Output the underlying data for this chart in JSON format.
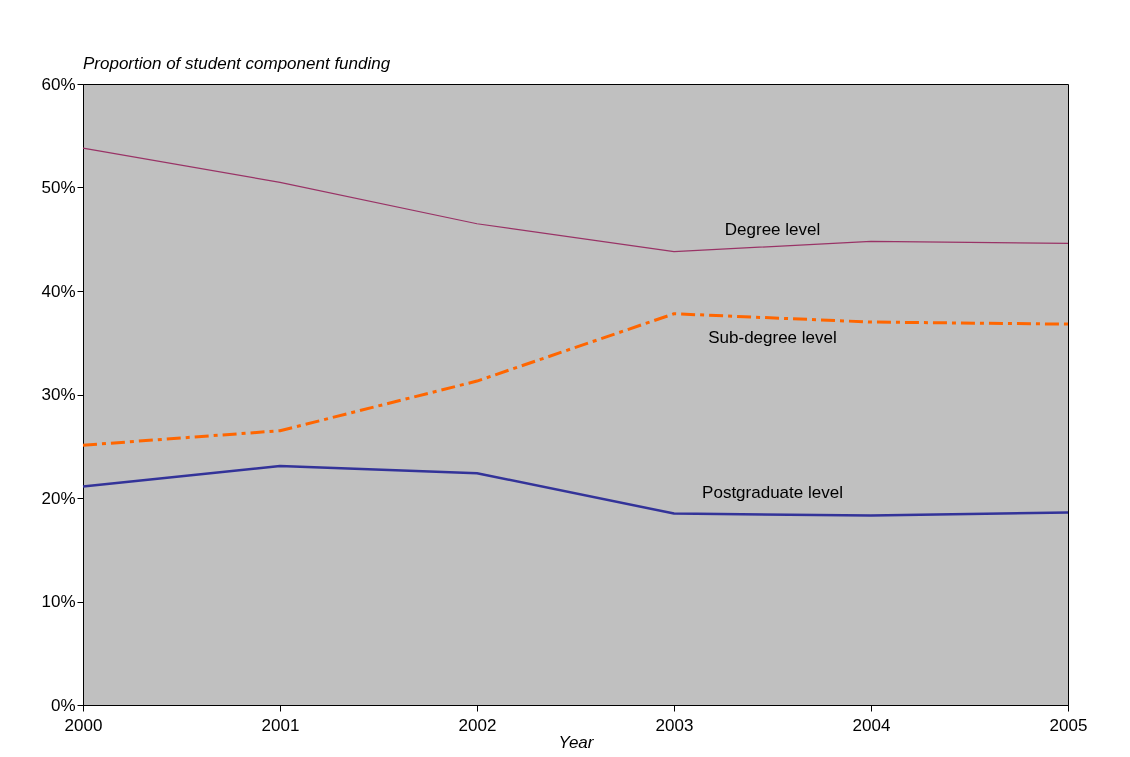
{
  "chart_data": {
    "type": "line",
    "ylabel": "Proportion of student component funding",
    "xlabel": "Year",
    "x": [
      2000,
      2001,
      2002,
      2003,
      2004,
      2005
    ],
    "series": [
      {
        "name": "Degree level",
        "color": "#993366",
        "line_style": "solid",
        "values": [
          53.8,
          50.5,
          46.5,
          43.8,
          44.8,
          44.6
        ]
      },
      {
        "name": "Sub-degree level",
        "color": "#ff6600",
        "line_style": "dashed",
        "values": [
          25.1,
          26.5,
          31.3,
          37.8,
          37.0,
          36.8
        ]
      },
      {
        "name": "Postgraduate level",
        "color": "#333399",
        "line_style": "solid",
        "values": [
          21.1,
          23.1,
          22.4,
          18.5,
          18.3,
          18.6
        ]
      }
    ],
    "xlim": [
      2000,
      2005
    ],
    "xticks": [
      2000,
      2001,
      2002,
      2003,
      2004,
      2005
    ],
    "ylim": [
      0,
      60
    ],
    "yticks": [
      {
        "value": 0,
        "label": "0%"
      },
      {
        "value": 10,
        "label": "10%"
      },
      {
        "value": 20,
        "label": "20%"
      },
      {
        "value": 30,
        "label": "30%"
      },
      {
        "value": 40,
        "label": "40%"
      },
      {
        "value": 50,
        "label": "50%"
      },
      {
        "value": 60,
        "label": "60%"
      }
    ],
    "grid": false,
    "marker": "none"
  }
}
